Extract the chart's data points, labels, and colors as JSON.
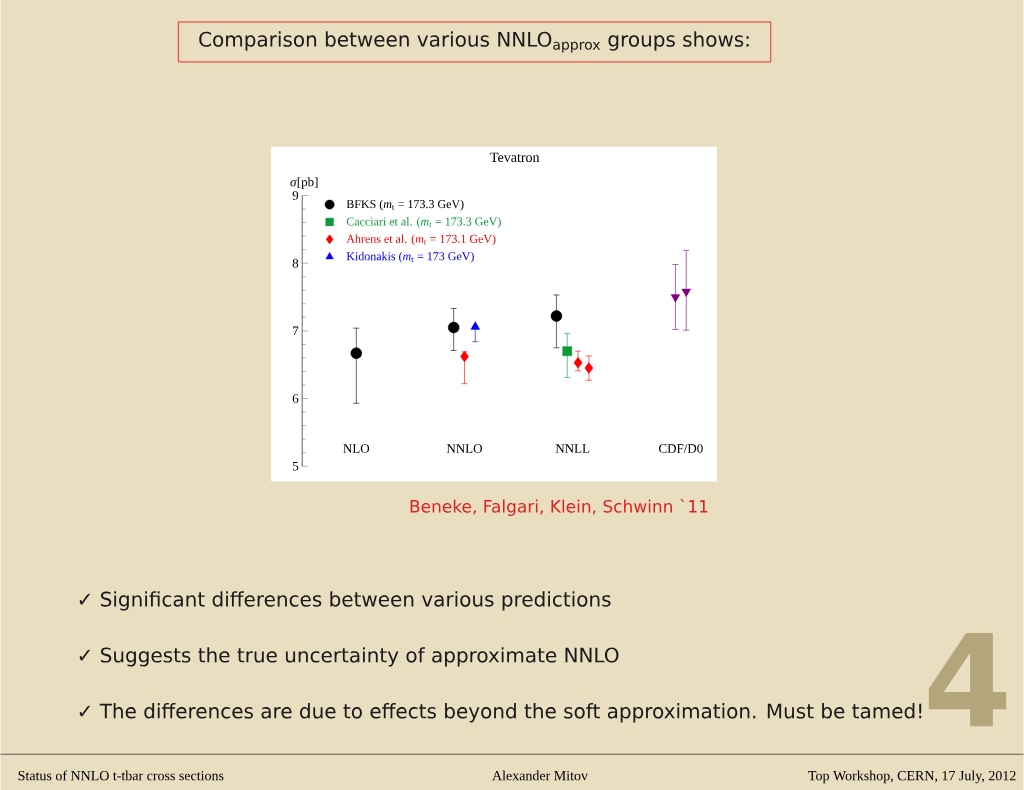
{
  "chart_data": {
    "type": "scatter",
    "title": "Comparison between various NNLO$_{approx}$ groups shows:",
    "subtitle": "Tevatron",
    "ylabel": "*σ*[pb]",
    "categories": [
      "NLO",
      "NNLO",
      "NNLL",
      "CDF/D0"
    ],
    "ylim": [
      5,
      9
    ],
    "yticks": [
      5,
      6,
      7,
      8,
      9
    ],
    "legend": "top left",
    "series": [
      {
        "name": "BFKS (*m*$_{t}$ = 173.3 GeV)",
        "color": "#000000",
        "marker": "circle",
        "values": [
          6.67,
          7.05,
          7.22,
          null
        ],
        "errors": [
          [
            5.93,
            7.04
          ],
          [
            6.71,
            7.33
          ],
          [
            6.75,
            7.53
          ],
          null
        ]
      },
      {
        "name": "Cacciari et al. (*m*$_{t}$ = 173.3 GeV)",
        "color": "#0a9a3c",
        "marker": "square",
        "values": [
          null,
          null,
          6.7,
          null
        ],
        "errors": [
          null,
          null,
          [
            6.31,
            6.96
          ],
          null
        ]
      },
      {
        "name": "Ahrens et al. (*m*$_{t}$ = 173.1 GeV)",
        "color": "#ff0000",
        "marker": "diamond",
        "values": [
          null,
          6.62,
          6.53,
          null
        ],
        "errors": [
          null,
          [
            6.22,
            6.69
          ],
          [
            6.41,
            6.7
          ],
          null
        ]
      },
      {
        "color": "#ff0000",
        "marker": "diamond",
        "values": [
          null,
          null,
          6.45,
          null
        ],
        "errors": [
          null,
          null,
          [
            6.27,
            6.63
          ],
          null
        ]
      },
      {
        "name": "Kidonakis (*m*$_{t}$ = 173 GeV)",
        "color": "#0000ff",
        "marker": "triangle",
        "values": [
          null,
          7.06,
          null,
          null
        ],
        "errors": [
          null,
          [
            6.84,
            7.06
          ],
          null,
          null
        ]
      },
      {
        "color": "#800080",
        "marker": "triangle_down",
        "values": [
          null,
          null,
          null,
          7.5
        ],
        "errors": [
          null,
          null,
          null,
          [
            7.02,
            7.98
          ]
        ]
      },
      {
        "color": "#800080",
        "marker": "triangle_down",
        "values": [
          null,
          null,
          null,
          7.58
        ],
        "errors": [
          null,
          null,
          null,
          [
            7.01,
            8.19
          ]
        ]
      }
    ],
    "annotations": [
      "Beneke, Falgari, Klein, Schwinn `11",
      "✓ Significant differences between various predictions",
      "✓ Suggests the true uncertainty of approximate NNLO",
      "✓ The differences are due to effects beyond the soft approximation. Must be tamed!",
      "Status of NNLO t-tbar cross sections",
      "Alexander Mitov",
      "Top Workshop, CERN, 17 July, 2012",
      "4"
    ]
  }
}
